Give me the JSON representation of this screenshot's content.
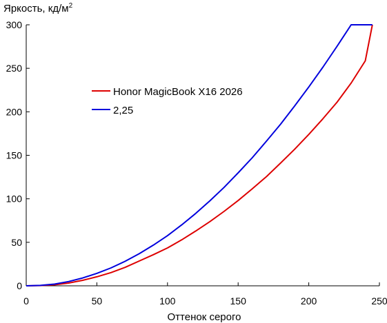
{
  "chart_data": {
    "type": "line",
    "ylabel": "Яркость, кд/м",
    "ylabel_superscript": "2",
    "xlabel": "Оттенок серого",
    "xlim": [
      0,
      250
    ],
    "ylim": [
      0,
      300
    ],
    "x_ticks": [
      0,
      50,
      100,
      150,
      200,
      250
    ],
    "y_ticks": [
      0,
      50,
      100,
      150,
      200,
      250,
      300
    ],
    "grid": false,
    "legend_position": "upper-left",
    "series": [
      {
        "name": "Honor MagicBook X16 2026",
        "color": "#dd0000",
        "x": [
          0,
          10,
          20,
          30,
          40,
          50,
          60,
          70,
          80,
          90,
          100,
          110,
          120,
          130,
          140,
          150,
          160,
          170,
          180,
          190,
          200,
          210,
          220,
          230,
          240,
          245
        ],
        "y": [
          0,
          0.3,
          1.2,
          3.2,
          6.3,
          10.4,
          15.2,
          21.2,
          28.5,
          35.8,
          43.5,
          52.8,
          63.0,
          73.8,
          85.5,
          98.0,
          111.5,
          125.5,
          141.0,
          157.0,
          174.0,
          192.0,
          211.0,
          233.0,
          258.5,
          300.0
        ]
      },
      {
        "name": "2,25",
        "color": "#0000dd",
        "x": [
          0,
          10,
          20,
          30,
          40,
          50,
          60,
          70,
          80,
          90,
          100,
          110,
          120,
          130,
          140,
          150,
          160,
          170,
          180,
          190,
          200,
          210,
          220,
          230,
          240,
          245
        ],
        "y": [
          0,
          0.5,
          2.0,
          4.9,
          9.0,
          14.3,
          20.6,
          28.2,
          36.9,
          46.8,
          57.6,
          70.0,
          83.3,
          97.7,
          113.0,
          129.8,
          147.2,
          166.2,
          185.6,
          206.7,
          228.5,
          251.3,
          275.3,
          300.0,
          300.0,
          300.0
        ]
      }
    ]
  }
}
